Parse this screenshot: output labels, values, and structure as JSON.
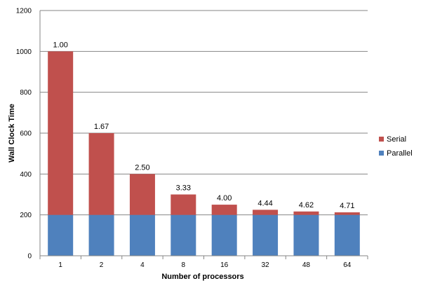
{
  "chart_data": {
    "type": "bar",
    "stacked": true,
    "categories": [
      "1",
      "2",
      "4",
      "8",
      "16",
      "32",
      "48",
      "64"
    ],
    "series": [
      {
        "name": "Parallel",
        "values": [
          200,
          200,
          200,
          200,
          200,
          200,
          200,
          200
        ],
        "color": "#4F81BD"
      },
      {
        "name": "Serial",
        "values": [
          800,
          400,
          200,
          100,
          50,
          25,
          16.7,
          12.5
        ],
        "color": "#C0504D"
      }
    ],
    "data_labels": [
      "1.00",
      "1.67",
      "2.50",
      "3.33",
      "4.00",
      "4.44",
      "4.62",
      "4.71"
    ],
    "xlabel": "Number of processors",
    "ylabel": "Wall Clock Time",
    "ylim": [
      0,
      1200
    ],
    "yticks": [
      0,
      200,
      400,
      600,
      800,
      1000,
      1200
    ],
    "grid": true,
    "legend_position": "right"
  }
}
